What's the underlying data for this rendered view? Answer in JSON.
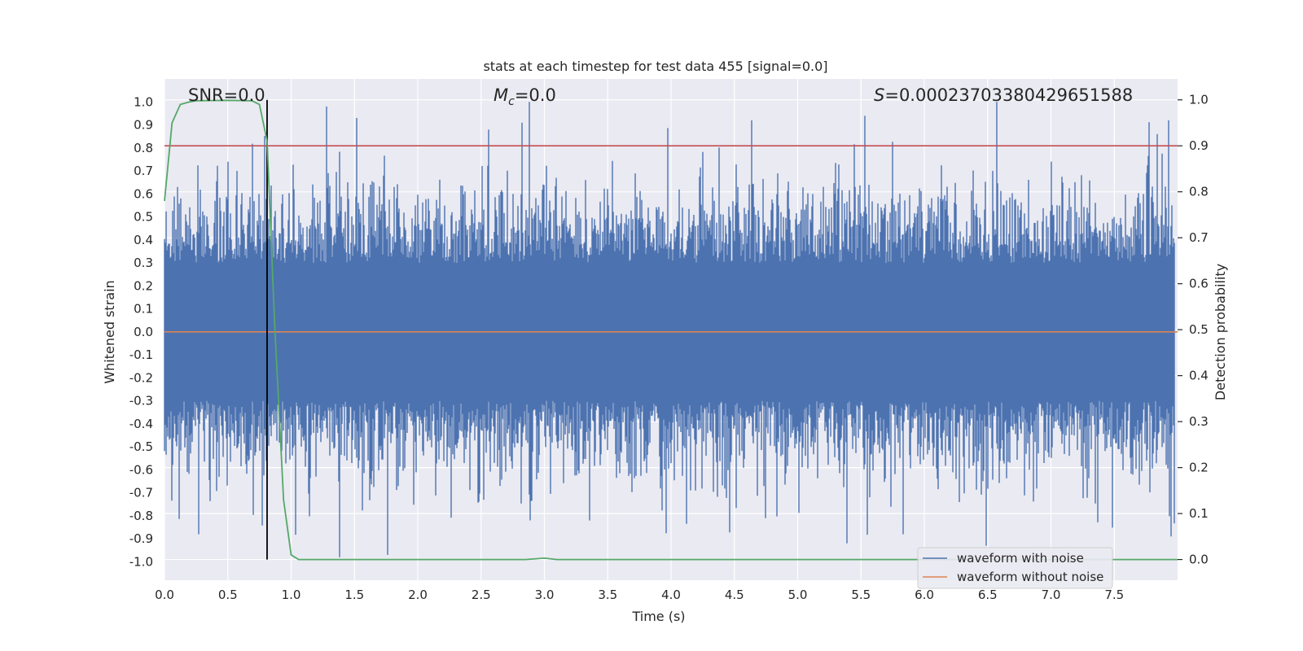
{
  "chart_data": {
    "type": "line",
    "title": "stats at each timestep for test data 455 [signal=0.0]",
    "xlabel": "Time (s)",
    "ylabel_left": "Whitened strain",
    "ylabel_right": "Detection probability",
    "xlim": [
      0.0,
      8.0
    ],
    "ylim_left": [
      -1.08,
      1.1
    ],
    "ylim_right": [
      -0.045,
      1.0455
    ],
    "x_ticks": [
      0.0,
      0.5,
      1.0,
      1.5,
      2.0,
      2.5,
      3.0,
      3.5,
      4.0,
      4.5,
      5.0,
      5.5,
      6.0,
      6.5,
      7.0,
      7.5
    ],
    "x_tick_labels": [
      "0.0",
      "0.5",
      "1.0",
      "1.5",
      "2.0",
      "2.5",
      "3.0",
      "3.5",
      "4.0",
      "4.5",
      "5.0",
      "5.5",
      "6.0",
      "6.5",
      "7.0",
      "7.5"
    ],
    "y_left_ticks": [
      1.0,
      0.9,
      0.8,
      0.7,
      0.6,
      0.5,
      0.4,
      0.3,
      0.2,
      0.1,
      0.0,
      -0.1,
      -0.2,
      -0.3,
      -0.4,
      -0.5,
      -0.6,
      -0.7,
      -0.8,
      -0.9,
      -1.0
    ],
    "y_left_tick_labels": [
      "1.0",
      "0.9",
      "0.8",
      "0.7",
      "0.6",
      "0.5",
      "0.4",
      "0.3",
      "0.2",
      "0.1",
      "0.0",
      "-0.1",
      "-0.2",
      "-0.3",
      "-0.4",
      "-0.5",
      "-0.6",
      "-0.7",
      "-0.8",
      "-0.9",
      "-1.0"
    ],
    "y_right_ticks": [
      1.0,
      0.9,
      0.8,
      0.7,
      0.6,
      0.5,
      0.4,
      0.3,
      0.2,
      0.1,
      0.0
    ],
    "y_right_tick_labels": [
      "1.0",
      "0.9",
      "0.8",
      "0.7",
      "0.6",
      "0.5",
      "0.4",
      "0.3",
      "0.2",
      "0.1",
      "0.0"
    ],
    "annotations": {
      "snr": "SNR=0.0",
      "mc_symbol": "M",
      "mc_subscript": "c",
      "mc_value": "=0.0",
      "s_symbol": "S",
      "s_value": "=0.00023703380429651588"
    },
    "threshold": {
      "axis": "right",
      "value": 0.9,
      "color": "#c44e52"
    },
    "vline": {
      "x": 0.81,
      "ymin": 0.0,
      "ymax": 1.0,
      "color": "#000000"
    },
    "series": [
      {
        "name": "waveform with noise",
        "axis": "left",
        "color": "#4c72b0",
        "kind": "noise",
        "envelope": {
          "typical_abs": 0.4,
          "peak_max": 1.0,
          "peak_min": -0.98,
          "sample_rate_hz": 2048
        },
        "notable_peaks": [
          {
            "x": 0.1,
            "y": 0.63
          },
          {
            "x": 0.5,
            "y": 0.74
          },
          {
            "x": 0.57,
            "y": 0.7
          },
          {
            "x": 1.28,
            "y": 0.98
          },
          {
            "x": 1.52,
            "y": 0.93
          },
          {
            "x": 2.56,
            "y": 0.88
          },
          {
            "x": 2.82,
            "y": 0.91
          },
          {
            "x": 2.88,
            "y": 1.0
          },
          {
            "x": 5.53,
            "y": 0.94
          },
          {
            "x": 6.57,
            "y": 1.0
          },
          {
            "x": 7.84,
            "y": 0.86
          },
          {
            "x": 0.27,
            "y": -0.88
          },
          {
            "x": 1.38,
            "y": -0.98
          },
          {
            "x": 1.76,
            "y": -0.97
          },
          {
            "x": 2.89,
            "y": -0.82
          },
          {
            "x": 5.39,
            "y": -0.92
          },
          {
            "x": 5.83,
            "y": -0.88
          },
          {
            "x": 6.49,
            "y": -0.93
          },
          {
            "x": 7.95,
            "y": -0.89
          }
        ]
      },
      {
        "name": "waveform without noise",
        "axis": "left",
        "color": "#dd8452",
        "x": [
          0.0,
          8.0
        ],
        "y": [
          0.0,
          0.0
        ]
      },
      {
        "name": "detection probability",
        "axis": "right",
        "color": "#55a868",
        "x": [
          0.0,
          0.06,
          0.125,
          0.19,
          0.25,
          0.5,
          0.69,
          0.75,
          0.81,
          0.87,
          0.94,
          1.0,
          1.06,
          1.5,
          2.0,
          2.5,
          2.85,
          3.0,
          3.1,
          4.0,
          5.0,
          6.0,
          7.0,
          8.0
        ],
        "y": [
          0.78,
          0.95,
          0.99,
          0.995,
          0.998,
          0.999,
          0.998,
          0.99,
          0.91,
          0.51,
          0.13,
          0.01,
          0.0,
          0.0,
          0.0,
          0.0,
          0.0,
          0.003,
          0.0,
          0.0,
          0.0,
          0.0,
          0.0,
          0.0
        ]
      }
    ],
    "legend": {
      "location": "lower-right",
      "entries": [
        "waveform with noise",
        "waveform without noise"
      ]
    },
    "grid": true,
    "style": {
      "background": "#eaeaf2",
      "grid_color": "#ffffff"
    }
  }
}
